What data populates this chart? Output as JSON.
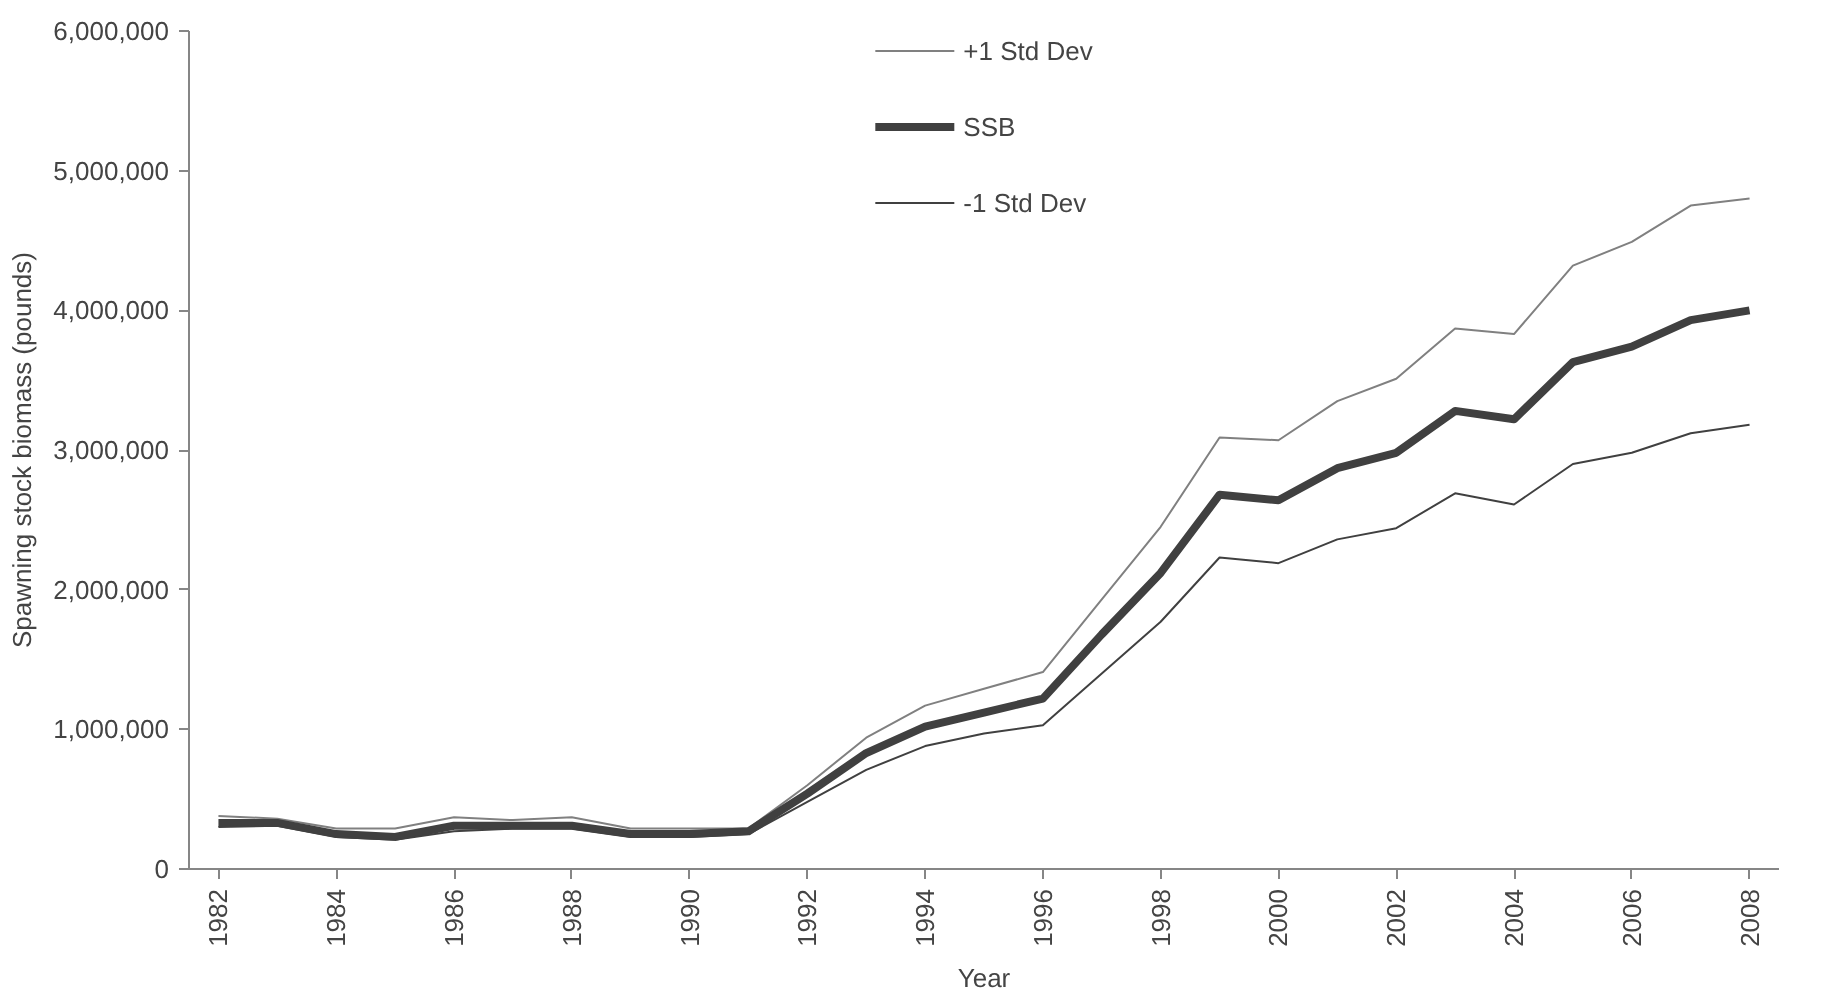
{
  "chart_data": {
    "type": "line",
    "xlabel": "Year",
    "ylabel": "Spawning stock biomass (pounds)",
    "x": [
      1982,
      1983,
      1984,
      1985,
      1986,
      1987,
      1988,
      1989,
      1990,
      1991,
      1992,
      1993,
      1994,
      1995,
      1996,
      1997,
      1998,
      1999,
      2000,
      2001,
      2002,
      2003,
      2004,
      2005,
      2006,
      2007,
      2008
    ],
    "xlim": [
      1981.5,
      2008.5
    ],
    "xticks": [
      1982,
      1984,
      1986,
      1988,
      1990,
      1992,
      1994,
      1996,
      1998,
      2000,
      2002,
      2004,
      2006,
      2008
    ],
    "ylim": [
      0,
      6000000
    ],
    "yticks": [
      {
        "value": 0,
        "label": "0"
      },
      {
        "value": 1000000,
        "label": "1,000,000"
      },
      {
        "value": 2000000,
        "label": "2,000,000"
      },
      {
        "value": 3000000,
        "label": "3,000,000"
      },
      {
        "value": 4000000,
        "label": "4,000,000"
      },
      {
        "value": 5000000,
        "label": "5,000,000"
      },
      {
        "value": 6000000,
        "label": "6,000,000"
      }
    ],
    "grid": false,
    "legend": "top",
    "marker": "none",
    "line_style": "solid",
    "series": [
      {
        "name": "+1 Std Dev",
        "color": "#808080",
        "values": [
          380000,
          360000,
          290000,
          290000,
          370000,
          350000,
          370000,
          290000,
          290000,
          290000,
          600000,
          940000,
          1170000,
          1290000,
          1410000,
          1930000,
          2450000,
          3090000,
          3070000,
          3350000,
          3510000,
          3870000,
          3830000,
          4320000,
          4490000,
          4750000,
          4800000
        ]
      },
      {
        "name": "SSB",
        "color": "#404040",
        "values": [
          330000,
          330000,
          250000,
          230000,
          310000,
          310000,
          310000,
          250000,
          250000,
          270000,
          540000,
          830000,
          1020000,
          1120000,
          1220000,
          1680000,
          2120000,
          2680000,
          2640000,
          2870000,
          2980000,
          3280000,
          3220000,
          3630000,
          3740000,
          3930000,
          4000000
        ]
      },
      {
        "name": "-1 Std Dev",
        "color": "#404040",
        "values": [
          300000,
          310000,
          230000,
          210000,
          270000,
          290000,
          290000,
          230000,
          230000,
          250000,
          480000,
          710000,
          880000,
          970000,
          1030000,
          1400000,
          1770000,
          2230000,
          2190000,
          2360000,
          2440000,
          2690000,
          2610000,
          2900000,
          2980000,
          3120000,
          3180000
        ]
      }
    ]
  }
}
